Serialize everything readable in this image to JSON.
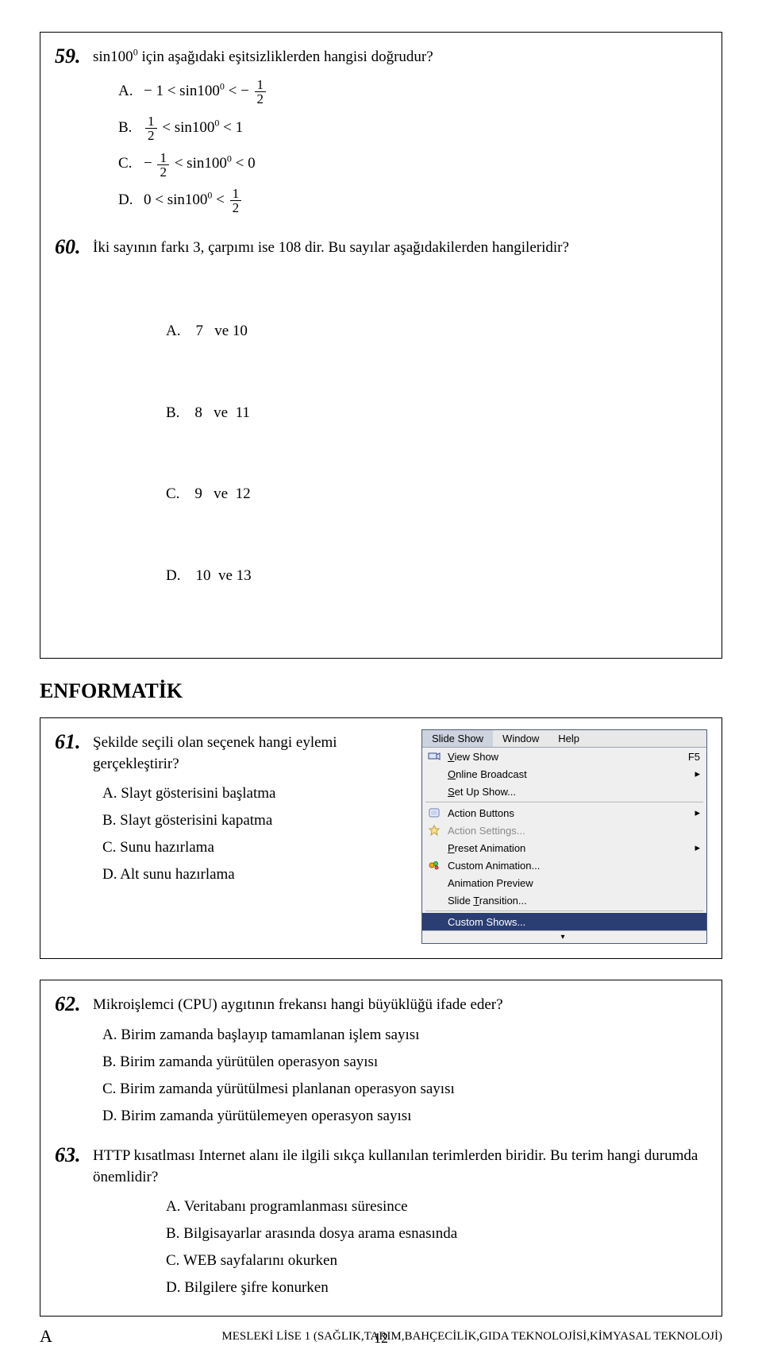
{
  "q59": {
    "num": "59.",
    "text_before": "sin100",
    "text_after": " için aşağıdaki eşitsizliklerden hangisi doğrudur?",
    "opts": {
      "A": {
        "letter": "A.",
        "pre": "− 1 < sin100",
        "post_lt": " < −",
        "frac_n": "1",
        "frac_d": "2"
      },
      "B": {
        "letter": "B.",
        "frac_n": "1",
        "frac_d": "2",
        "between": " < sin100",
        "post": " < 1"
      },
      "C": {
        "letter": "C.",
        "pre": "− ",
        "frac_n": "1",
        "frac_d": "2",
        "between": " < sin100",
        "post": " < 0"
      },
      "D": {
        "letter": "D.",
        "pre": "0 < sin100",
        "post_lt": " < ",
        "frac_n": "1",
        "frac_d": "2"
      }
    }
  },
  "q60": {
    "num": "60.",
    "text": "İki sayının farkı 3, çarpımı ise 108 dir. Bu sayılar aşağıdakilerden hangileridir?",
    "opts": {
      "A": "A.    7   ve 10",
      "B": "B.    8   ve  11",
      "C": "C.    9   ve  12",
      "D": "D.    10  ve 13"
    }
  },
  "section": "ENFORMATİK",
  "q61": {
    "num": "61.",
    "text": "Şekilde seçili olan seçenek hangi eylemi gerçekleştirir?",
    "opts": {
      "A": "A. Slayt gösterisini başlatma",
      "B": "B. Slayt gösterisini kapatma",
      "C": "C. Sunu hazırlama",
      "D": "D. Alt sunu hazırlama"
    }
  },
  "menu": {
    "bar": [
      "Slide Show",
      "Window",
      "Help"
    ],
    "items": [
      {
        "icon": "projector",
        "label": "View Show",
        "ul": "V",
        "shortcut": "F5",
        "arrow": "",
        "disabled": false
      },
      {
        "icon": "",
        "label": "Online Broadcast",
        "ul": "O",
        "shortcut": "",
        "arrow": "▸",
        "disabled": false
      },
      {
        "icon": "",
        "label": "Set Up Show...",
        "ul": "S",
        "shortcut": "",
        "arrow": "",
        "disabled": false
      },
      {
        "icon": "sep"
      },
      {
        "icon": "button",
        "label": "Action Buttons",
        "ul": "",
        "shortcut": "",
        "arrow": "▸",
        "disabled": false
      },
      {
        "icon": "star",
        "label": "Action Settings...",
        "ul": "",
        "shortcut": "",
        "arrow": "",
        "disabled": true
      },
      {
        "icon": "",
        "label": "Preset Animation",
        "ul": "P",
        "shortcut": "",
        "arrow": "▸",
        "disabled": false
      },
      {
        "icon": "anim",
        "label": "Custom Animation...",
        "ul": "",
        "shortcut": "",
        "arrow": "",
        "disabled": false
      },
      {
        "icon": "",
        "label": "Animation Preview",
        "ul": "",
        "shortcut": "",
        "arrow": "",
        "disabled": false
      },
      {
        "icon": "",
        "label": "Slide Transition...",
        "ul": "T",
        "shortcut": "",
        "arrow": "",
        "disabled": false
      },
      {
        "icon": "sep"
      },
      {
        "icon": "",
        "label": "Custom Shows...",
        "ul": "",
        "shortcut": "",
        "arrow": "",
        "disabled": false,
        "highlight": true
      },
      {
        "icon": "chev",
        "label": "",
        "ul": "",
        "shortcut": "",
        "arrow": "",
        "disabled": false
      }
    ]
  },
  "q62": {
    "num": "62.",
    "text": "Mikroişlemci (CPU) aygıtının frekansı hangi büyüklüğü ifade eder?",
    "opts": {
      "A": "A. Birim zamanda başlayıp tamamlanan işlem sayısı",
      "B": "B. Birim zamanda yürütülen operasyon sayısı",
      "C": "C. Birim zamanda yürütülmesi planlanan operasyon sayısı",
      "D": "D. Birim zamanda yürütülemeyen operasyon sayısı"
    }
  },
  "q63": {
    "num": "63.",
    "text": "HTTP kısatlması Internet alanı ile ilgili sıkça kullanılan terimlerden biridir. Bu terim hangi durumda önemlidir?",
    "opts": {
      "A": "A. Veritabanı programlanması süresince",
      "B": "B. Bilgisayarlar arasında dosya arama esnasında",
      "C": "C. WEB sayfalarını okurken",
      "D": "D. Bilgilere şifre konurken"
    }
  },
  "footer": {
    "left": "A",
    "page": "12",
    "right": "MESLEKİ LİSE 1  (SAĞLIK,TARIM,BAHÇECİLİK,GIDA TEKNOLOJİSİ,KİMYASAL TEKNOLOJİ)"
  }
}
